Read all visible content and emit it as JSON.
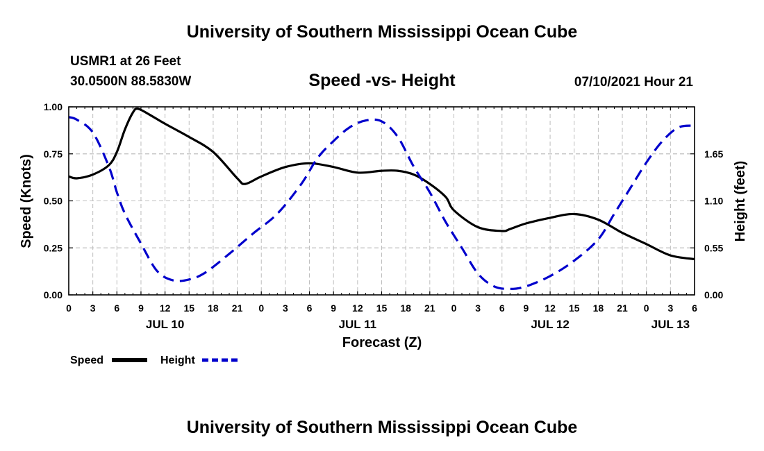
{
  "header": {
    "title": "University of Southern Mississippi Ocean Cube",
    "station": "USMR1 at 26 Feet",
    "coords": "30.0500N  88.5830W",
    "subtitle": "Speed -vs- Height",
    "datetime": "07/10/2021 Hour 21"
  },
  "footer": {
    "title": "University of Southern Mississippi Ocean Cube"
  },
  "colors": {
    "speed": "#000000",
    "height": "#0000cc",
    "grid": "#bdbdbd"
  },
  "legend": {
    "speed_label": "Speed",
    "height_label": "Height"
  },
  "chart_data": {
    "type": "line",
    "title": "Speed -vs- Height",
    "xlabel": "Forecast (Z)",
    "ylabel": "Speed (Knots)",
    "y2label": "Height (feet)",
    "xlim": [
      0,
      78
    ],
    "ylim": [
      0,
      1
    ],
    "y2lim": [
      0,
      2.2
    ],
    "x_tick_labels": [
      "0",
      "3",
      "6",
      "9",
      "12",
      "15",
      "18",
      "21",
      "0",
      "3",
      "6",
      "9",
      "12",
      "15",
      "18",
      "21",
      "0",
      "3",
      "6",
      "9",
      "12",
      "15",
      "18",
      "21",
      "0",
      "3",
      "6"
    ],
    "day_labels": [
      {
        "label": "JUL 10",
        "x": 12
      },
      {
        "label": "JUL 11",
        "x": 36
      },
      {
        "label": "JUL 12",
        "x": 60
      },
      {
        "label": "JUL 13",
        "x": 75
      }
    ],
    "y_ticks": [
      0,
      0.25,
      0.5,
      0.75,
      1.0
    ],
    "y_tick_labels": [
      "0.00",
      "0.25",
      "0.50",
      "0.75",
      "1.00"
    ],
    "y2_ticks": [
      0,
      0.55,
      1.1,
      1.65
    ],
    "y2_tick_labels": [
      "0.00",
      "0.55",
      "1.10",
      "1.65"
    ],
    "series": [
      {
        "name": "Speed",
        "axis": "left",
        "style": "solid",
        "x": [
          0,
          1,
          3,
          5,
          6,
          7,
          8,
          8.6,
          10,
          12,
          15,
          18,
          21,
          22,
          24,
          27,
          30,
          33,
          36,
          39,
          41,
          43,
          45,
          47,
          48,
          51,
          54,
          55,
          57,
          60,
          63,
          66,
          69,
          72,
          75,
          78
        ],
        "y": [
          0.63,
          0.62,
          0.64,
          0.69,
          0.76,
          0.88,
          0.97,
          0.99,
          0.96,
          0.91,
          0.84,
          0.76,
          0.62,
          0.59,
          0.63,
          0.68,
          0.7,
          0.68,
          0.65,
          0.66,
          0.66,
          0.64,
          0.59,
          0.52,
          0.45,
          0.36,
          0.34,
          0.35,
          0.38,
          0.41,
          0.43,
          0.4,
          0.33,
          0.27,
          0.21,
          0.19
        ]
      },
      {
        "name": "Height",
        "axis": "right",
        "style": "dashed",
        "x": [
          0,
          1,
          3,
          5,
          6,
          7,
          9,
          11,
          13,
          15,
          17,
          20,
          23,
          26,
          29,
          31,
          33,
          35,
          37,
          39,
          41,
          43,
          45,
          47,
          49,
          51,
          53,
          55,
          57,
          60,
          63,
          66,
          68,
          70,
          72,
          74,
          76,
          78
        ],
        "y": [
          2.08,
          2.05,
          1.9,
          1.5,
          1.2,
          0.95,
          0.6,
          0.28,
          0.17,
          0.18,
          0.26,
          0.48,
          0.72,
          0.95,
          1.3,
          1.6,
          1.8,
          1.96,
          2.04,
          2.03,
          1.85,
          1.5,
          1.2,
          0.85,
          0.55,
          0.25,
          0.1,
          0.07,
          0.1,
          0.22,
          0.4,
          0.65,
          0.95,
          1.25,
          1.55,
          1.8,
          1.96,
          1.98
        ]
      }
    ]
  }
}
